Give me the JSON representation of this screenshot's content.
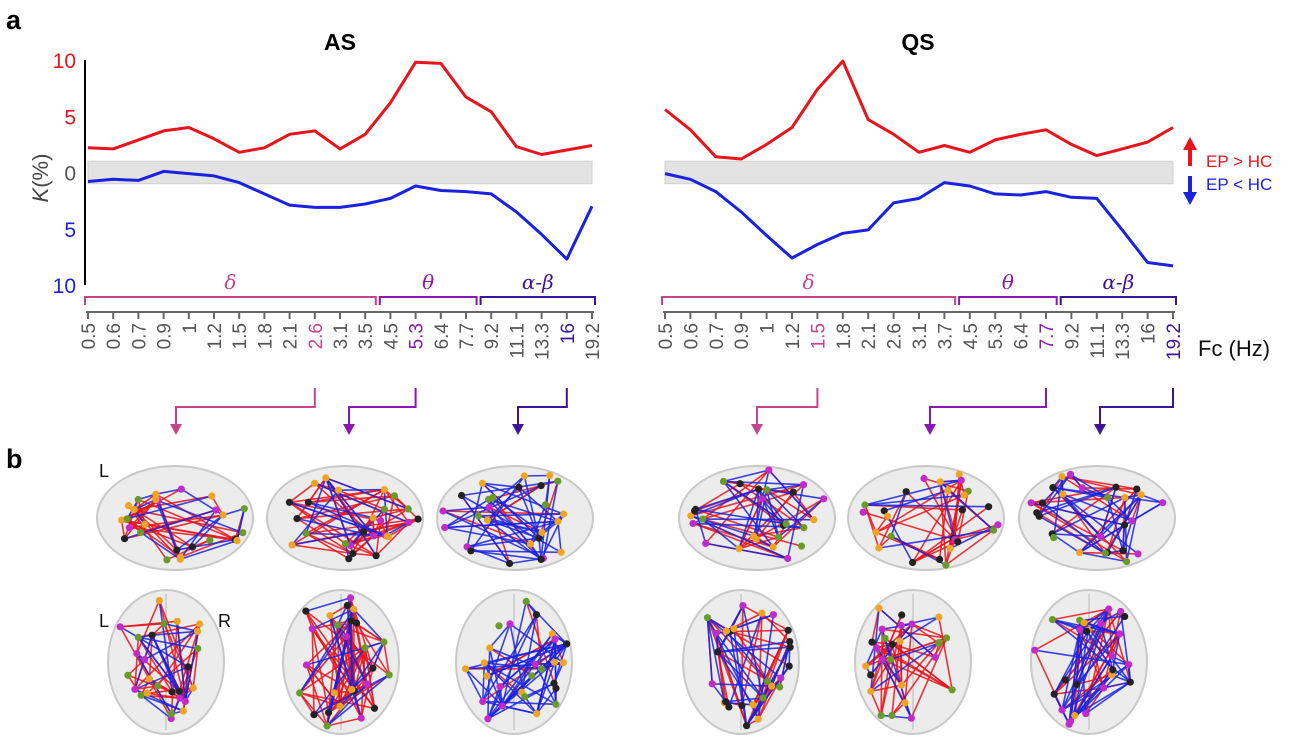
{
  "panel_labels": [
    "a",
    "b"
  ],
  "legend": {
    "up": {
      "label": "EP > HC",
      "color": "#e8131b"
    },
    "down": {
      "label": "EP < HC",
      "color": "#1a22e0"
    }
  },
  "colors": {
    "red": "#e8131b",
    "blue": "#1a22e0",
    "band_gray": "#e3e3e3",
    "delta": "#c64589",
    "theta": "#8a17b0",
    "alphabeta": "#3c1596",
    "tick_gray": "#555555"
  },
  "fc_label": "Fc (Hz)",
  "chart_data": [
    {
      "type": "line",
      "title": "AS",
      "xlabel": "",
      "ylabel": "K(%)",
      "y_tick_labels": [
        "10",
        "5",
        "0",
        "5",
        "10"
      ],
      "ylim": [
        -10,
        10
      ],
      "shaded_band": [
        -1,
        1
      ],
      "x": [
        "0.5",
        "0.6",
        "0.7",
        "0.9",
        "1",
        "1.2",
        "1.5",
        "1.8",
        "2.1",
        "2.6",
        "3.1",
        "3.5",
        "4.5",
        "5.3",
        "6.4",
        "7.7",
        "9.2",
        "11.1",
        "13.3",
        "16",
        "19.2"
      ],
      "x_tick_labels": [
        "0.5",
        "0.6",
        "0.7",
        "0.9",
        "1",
        "1.2",
        "1.5",
        "1.8",
        "2.1",
        "2.6",
        "3.1",
        "3.5",
        "4.5",
        "5.3",
        "6.4",
        "7.7",
        "9.2",
        "11.1",
        "13.3",
        "16",
        "19.2"
      ],
      "highlighted_ticks": [
        {
          "label": "2.6",
          "band": "delta"
        },
        {
          "label": "5.3",
          "band": "theta"
        },
        {
          "label": "16",
          "band": "alphabeta"
        }
      ],
      "bands": [
        {
          "key": "delta",
          "label": "δ"
        },
        {
          "key": "theta",
          "label": "θ"
        },
        {
          "key": "alphabeta",
          "label": "α-β"
        }
      ],
      "series": [
        {
          "name": "EP > HC",
          "color": "#e8131b",
          "values": [
            2.2,
            2.1,
            2.9,
            3.7,
            4.0,
            3.0,
            1.8,
            2.2,
            3.4,
            3.7,
            2.1,
            3.4,
            6.2,
            9.8,
            9.7,
            6.7,
            5.4,
            2.3,
            1.6,
            2.0,
            2.4
          ]
        },
        {
          "name": "EP < HC",
          "color": "#1a22e0",
          "values": [
            -0.8,
            -0.6,
            -0.7,
            0.1,
            -0.1,
            -0.3,
            -0.9,
            -1.9,
            -2.9,
            -3.1,
            -3.1,
            -2.8,
            -2.3,
            -1.2,
            -1.6,
            -1.7,
            -1.9,
            -3.5,
            -5.5,
            -7.7,
            -3.0
          ]
        }
      ]
    },
    {
      "type": "line",
      "title": "QS",
      "xlabel": "",
      "ylabel": "",
      "ylim": [
        -10,
        10
      ],
      "shaded_band": [
        -1,
        1
      ],
      "x": [
        "0.5",
        "0.6",
        "0.7",
        "0.9",
        "1",
        "1.2",
        "1.5",
        "1.8",
        "2.1",
        "2.6",
        "3.1",
        "3.7",
        "4.5",
        "5.3",
        "6.4",
        "7.7",
        "9.2",
        "11.1",
        "13.3",
        "16",
        "19.2"
      ],
      "x_tick_labels": [
        "0.5",
        "0.6",
        "0.7",
        "0.9",
        "1",
        "1.2",
        "1.5",
        "1.8",
        "2.1",
        "2.6",
        "3.1",
        "3.7",
        "4.5",
        "5.3",
        "6.4",
        "7.7",
        "9.2",
        "11.1",
        "13.3",
        "16",
        "19.2"
      ],
      "highlighted_ticks": [
        {
          "label": "1.5",
          "band": "delta"
        },
        {
          "label": "7.7",
          "band": "theta"
        },
        {
          "label": "19.2",
          "band": "alphabeta"
        }
      ],
      "bands": [
        {
          "key": "delta",
          "label": "δ"
        },
        {
          "key": "theta",
          "label": "θ"
        },
        {
          "key": "alphabeta",
          "label": "α-β"
        }
      ],
      "series": [
        {
          "name": "EP > HC",
          "color": "#e8131b",
          "values": [
            5.6,
            3.8,
            1.4,
            1.2,
            2.5,
            4.0,
            7.4,
            9.9,
            4.7,
            3.4,
            1.8,
            2.4,
            1.8,
            2.9,
            3.4,
            3.8,
            2.5,
            1.5,
            2.1,
            2.7,
            4.0
          ]
        },
        {
          "name": "EP < HC",
          "color": "#1a22e0",
          "values": [
            -0.1,
            -0.6,
            -1.7,
            -3.5,
            -5.6,
            -7.6,
            -6.4,
            -5.4,
            -5.1,
            -2.7,
            -2.3,
            -0.9,
            -1.2,
            -1.9,
            -2.0,
            -1.7,
            -2.2,
            -2.3,
            -5.1,
            -8.0,
            -8.3
          ]
        }
      ]
    }
  ],
  "brain_views": {
    "left_hemisphere_label": "L",
    "axial_left_label": "L",
    "axial_right_label": "R",
    "panels": [
      {
        "state": "AS",
        "band": "delta",
        "freq": "2.6",
        "red_edges": 45,
        "blue_edges": 25
      },
      {
        "state": "AS",
        "band": "theta",
        "freq": "5.3",
        "red_edges": 75,
        "blue_edges": 25
      },
      {
        "state": "AS",
        "band": "alphabeta",
        "freq": "16",
        "red_edges": 15,
        "blue_edges": 65
      },
      {
        "state": "QS",
        "band": "delta",
        "freq": "1.5",
        "red_edges": 45,
        "blue_edges": 40
      },
      {
        "state": "QS",
        "band": "theta",
        "freq": "7.7",
        "red_edges": 50,
        "blue_edges": 15
      },
      {
        "state": "QS",
        "band": "alphabeta",
        "freq": "19.2",
        "red_edges": 35,
        "blue_edges": 55
      }
    ]
  }
}
